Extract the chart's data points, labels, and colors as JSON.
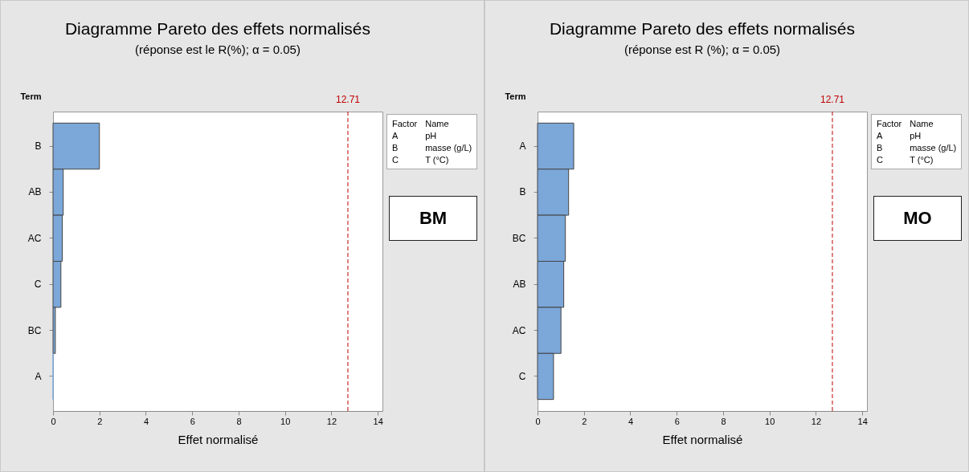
{
  "chart_data": [
    {
      "type": "bar",
      "orientation": "horizontal",
      "title": "Diagramme Pareto des effets normalisés",
      "subtitle": "(réponse est le  R(%); α = 0.05)",
      "xlabel": "Effet normalisé",
      "ylabel": "Term",
      "categories": [
        "B",
        "AB",
        "AC",
        "C",
        "BC",
        "A"
      ],
      "values": [
        2.0,
        0.44,
        0.4,
        0.34,
        0.1,
        0.0
      ],
      "color": "#7ba7d9",
      "xlim": [
        0,
        14.2
      ],
      "xticks": [
        0,
        2,
        4,
        6,
        8,
        10,
        12,
        14
      ],
      "grid": false,
      "ref_lines": [
        {
          "axis": "x",
          "value": 12.71,
          "label": "12.71",
          "color": "#c00000",
          "line_style": "dashed"
        }
      ],
      "annotations": [
        "Factor",
        "Name",
        "A",
        "pH",
        "B",
        "masse (g/L)",
        "C",
        "T (°C)",
        "BM"
      ]
    },
    {
      "type": "bar",
      "orientation": "horizontal",
      "title": "Diagramme Pareto des effets normalisés",
      "subtitle": "(réponse est R (%); α = 0.05)",
      "xlabel": "Effet normalisé",
      "ylabel": "Term",
      "categories": [
        "A",
        "B",
        "BC",
        "AB",
        "AC",
        "C"
      ],
      "values": [
        1.56,
        1.34,
        1.2,
        1.13,
        1.01,
        0.69
      ],
      "color": "#7ba7d9",
      "xlim": [
        0,
        14.2
      ],
      "xticks": [
        0,
        2,
        4,
        6,
        8,
        10,
        12,
        14
      ],
      "grid": false,
      "ref_lines": [
        {
          "axis": "x",
          "value": 12.71,
          "label": "12.71",
          "color": "#c00000",
          "line_style": "dashed"
        }
      ],
      "annotations": [
        "Factor",
        "Name",
        "A",
        "pH",
        "B",
        "masse (g/L)",
        "C",
        "T (°C)",
        "MO"
      ]
    }
  ]
}
